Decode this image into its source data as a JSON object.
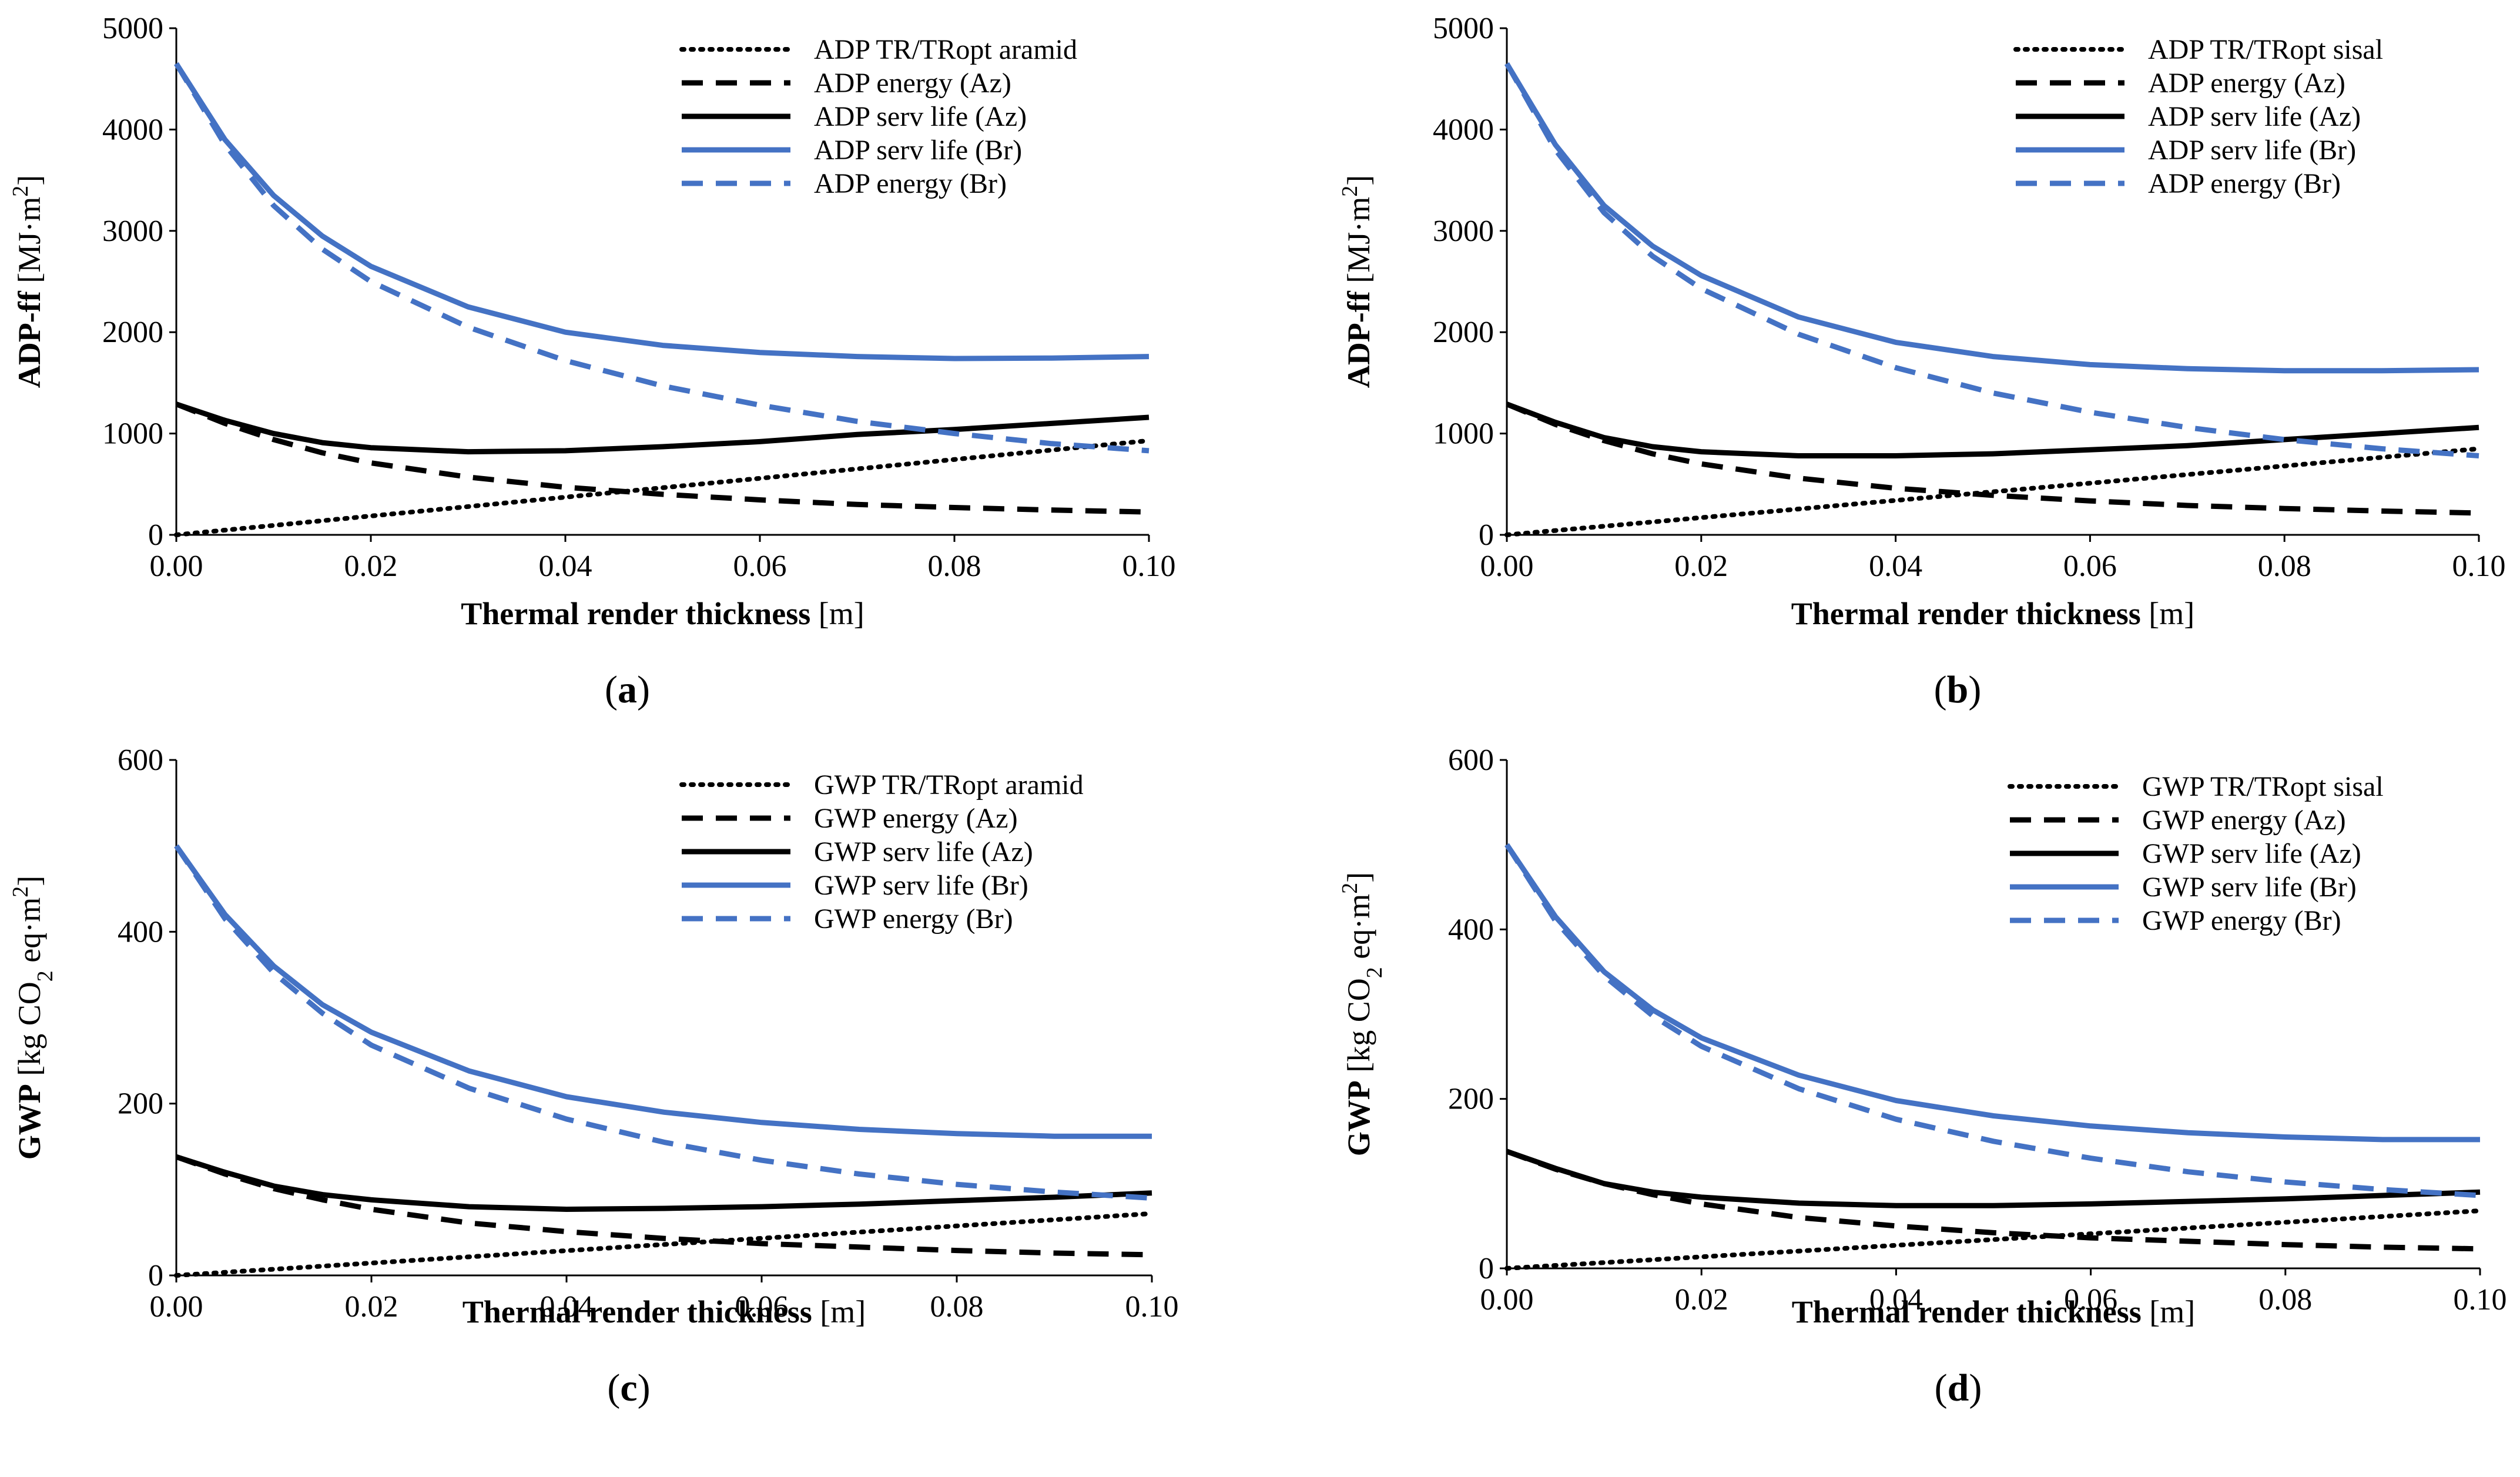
{
  "chart_data": [
    {
      "panel": "a",
      "panel_label_open": "(",
      "panel_label_letter": "a",
      "panel_label_close": ")",
      "type": "line",
      "xlabel_bold": "Thermal render thickness",
      "xlabel_unit": " [m]",
      "ylabel_bold": "ADP-ff",
      "ylabel_unit_pre": " [MJ·m",
      "ylabel_sub": "",
      "ylabel_unit_mid": "",
      "ylabel_sup": "2",
      "ylabel_unit_post": "]",
      "xlim": [
        0,
        0.1
      ],
      "ylim": [
        0,
        5000
      ],
      "x_ticks": [
        "0.00",
        "0.02",
        "0.04",
        "0.06",
        "0.08",
        "0.10"
      ],
      "y_ticks": [
        "0",
        "1000",
        "2000",
        "3000",
        "4000",
        "5000"
      ],
      "legend_position": "top-right",
      "series": [
        {
          "name": "ADP TR/TRopt aramid",
          "color": "#000000",
          "style": "dotted",
          "x": [
            0,
            0.1
          ],
          "y": [
            0,
            930
          ]
        },
        {
          "name": "ADP energy (Az)",
          "color": "#000000",
          "style": "dashed",
          "x": [
            0,
            0.005,
            0.01,
            0.015,
            0.02,
            0.03,
            0.04,
            0.05,
            0.06,
            0.07,
            0.08,
            0.09,
            0.1
          ],
          "y": [
            1290,
            1100,
            940,
            810,
            710,
            570,
            470,
            400,
            345,
            300,
            270,
            245,
            225
          ]
        },
        {
          "name": "ADP serv life (Az)",
          "color": "#000000",
          "style": "solid",
          "x": [
            0,
            0.005,
            0.01,
            0.015,
            0.02,
            0.03,
            0.04,
            0.05,
            0.06,
            0.07,
            0.08,
            0.09,
            0.1
          ],
          "y": [
            1290,
            1130,
            1000,
            910,
            860,
            820,
            830,
            870,
            920,
            990,
            1040,
            1100,
            1160
          ]
        },
        {
          "name": "ADP serv life (Br)",
          "color": "#4472C4",
          "style": "solid",
          "x": [
            0,
            0.005,
            0.01,
            0.015,
            0.02,
            0.03,
            0.04,
            0.05,
            0.06,
            0.07,
            0.08,
            0.09,
            0.1
          ],
          "y": [
            4650,
            3900,
            3350,
            2950,
            2650,
            2250,
            2000,
            1870,
            1800,
            1760,
            1740,
            1745,
            1760
          ]
        },
        {
          "name": "ADP energy (Br)",
          "color": "#4472C4",
          "style": "dashed",
          "x": [
            0,
            0.005,
            0.01,
            0.015,
            0.02,
            0.03,
            0.04,
            0.05,
            0.06,
            0.07,
            0.08,
            0.09,
            0.1
          ],
          "y": [
            4650,
            3850,
            3250,
            2820,
            2500,
            2050,
            1720,
            1470,
            1280,
            1120,
            1000,
            900,
            830
          ]
        }
      ]
    },
    {
      "panel": "b",
      "panel_label_open": "(",
      "panel_label_letter": "b",
      "panel_label_close": ")",
      "type": "line",
      "xlabel_bold": "Thermal render thickness",
      "xlabel_unit": " [m]",
      "ylabel_bold": "ADP-ff",
      "ylabel_unit_pre": " [MJ·m",
      "ylabel_sub": "",
      "ylabel_unit_mid": "",
      "ylabel_sup": "2",
      "ylabel_unit_post": "]",
      "xlim": [
        0,
        0.1
      ],
      "ylim": [
        0,
        5000
      ],
      "x_ticks": [
        "0.00",
        "0.02",
        "0.04",
        "0.06",
        "0.08",
        "0.10"
      ],
      "y_ticks": [
        "0",
        "1000",
        "2000",
        "3000",
        "4000",
        "5000"
      ],
      "legend_position": "top-right",
      "series": [
        {
          "name": "ADP TR/TRopt sisal",
          "color": "#000000",
          "style": "dotted",
          "x": [
            0,
            0.1
          ],
          "y": [
            0,
            850
          ]
        },
        {
          "name": "ADP energy (Az)",
          "color": "#000000",
          "style": "dashed",
          "x": [
            0,
            0.005,
            0.01,
            0.015,
            0.02,
            0.03,
            0.04,
            0.05,
            0.06,
            0.07,
            0.08,
            0.09,
            0.1
          ],
          "y": [
            1290,
            1090,
            930,
            800,
            700,
            560,
            460,
            390,
            335,
            290,
            260,
            235,
            215
          ]
        },
        {
          "name": "ADP serv life (Az)",
          "color": "#000000",
          "style": "solid",
          "x": [
            0,
            0.005,
            0.01,
            0.015,
            0.02,
            0.03,
            0.04,
            0.05,
            0.06,
            0.07,
            0.08,
            0.09,
            0.1
          ],
          "y": [
            1290,
            1110,
            960,
            870,
            820,
            780,
            780,
            800,
            840,
            880,
            940,
            1000,
            1060
          ]
        },
        {
          "name": "ADP serv life (Br)",
          "color": "#4472C4",
          "style": "solid",
          "x": [
            0,
            0.005,
            0.01,
            0.015,
            0.02,
            0.03,
            0.04,
            0.05,
            0.06,
            0.07,
            0.08,
            0.09,
            0.1
          ],
          "y": [
            4650,
            3850,
            3250,
            2850,
            2560,
            2150,
            1900,
            1760,
            1680,
            1640,
            1620,
            1620,
            1630
          ]
        },
        {
          "name": "ADP energy (Br)",
          "color": "#4472C4",
          "style": "dashed",
          "x": [
            0,
            0.005,
            0.01,
            0.015,
            0.02,
            0.03,
            0.04,
            0.05,
            0.06,
            0.07,
            0.08,
            0.09,
            0.1
          ],
          "y": [
            4650,
            3800,
            3180,
            2750,
            2430,
            1980,
            1650,
            1400,
            1210,
            1060,
            940,
            850,
            780
          ]
        }
      ]
    },
    {
      "panel": "c",
      "panel_label_open": "(",
      "panel_label_letter": "c",
      "panel_label_close": ")",
      "type": "line",
      "xlabel_bold": "Thermal render thickness",
      "xlabel_unit": " [m]",
      "ylabel_bold": "GWP",
      "ylabel_unit_pre": " [kg CO",
      "ylabel_sub": "2",
      "ylabel_unit_mid": " eq·m",
      "ylabel_sup": "2",
      "ylabel_unit_post": "]",
      "xlim": [
        0,
        0.1
      ],
      "ylim": [
        0,
        600
      ],
      "x_ticks": [
        "0.00",
        "0.02",
        "0.04",
        "0.06",
        "0.08",
        "0.10"
      ],
      "y_ticks": [
        "0",
        "200",
        "400",
        "600"
      ],
      "legend_position": "top-right",
      "series": [
        {
          "name": "GWP TR/TRopt aramid",
          "color": "#000000",
          "style": "dotted",
          "x": [
            0,
            0.1
          ],
          "y": [
            0,
            72
          ]
        },
        {
          "name": "GWP energy (Az)",
          "color": "#000000",
          "style": "dashed",
          "x": [
            0,
            0.005,
            0.01,
            0.015,
            0.02,
            0.03,
            0.04,
            0.05,
            0.06,
            0.07,
            0.08,
            0.09,
            0.1
          ],
          "y": [
            138,
            118,
            101,
            88,
            77,
            61,
            51,
            43,
            37,
            33,
            29,
            26,
            24
          ]
        },
        {
          "name": "GWP serv life (Az)",
          "color": "#000000",
          "style": "solid",
          "x": [
            0,
            0.005,
            0.01,
            0.015,
            0.02,
            0.03,
            0.04,
            0.05,
            0.06,
            0.07,
            0.08,
            0.09,
            0.1
          ],
          "y": [
            138,
            120,
            104,
            94,
            88,
            80,
            77,
            78,
            80,
            83,
            87,
            91,
            96
          ]
        },
        {
          "name": "GWP serv life (Br)",
          "color": "#4472C4",
          "style": "solid",
          "x": [
            0,
            0.005,
            0.01,
            0.015,
            0.02,
            0.03,
            0.04,
            0.05,
            0.06,
            0.07,
            0.08,
            0.09,
            0.1
          ],
          "y": [
            500,
            420,
            360,
            315,
            283,
            238,
            208,
            190,
            178,
            170,
            165,
            162,
            162
          ]
        },
        {
          "name": "GWP energy (Br)",
          "color": "#4472C4",
          "style": "dashed",
          "x": [
            0,
            0.005,
            0.01,
            0.015,
            0.02,
            0.03,
            0.04,
            0.05,
            0.06,
            0.07,
            0.08,
            0.09,
            0.1
          ],
          "y": [
            500,
            415,
            352,
            305,
            268,
            218,
            182,
            155,
            134,
            118,
            106,
            97,
            90
          ]
        }
      ]
    },
    {
      "panel": "d",
      "panel_label_open": "(",
      "panel_label_letter": "d",
      "panel_label_close": ")",
      "type": "line",
      "xlabel_bold": "Thermal render thickness",
      "xlabel_unit": " [m]",
      "ylabel_bold": "GWP",
      "ylabel_unit_pre": " [kg CO",
      "ylabel_sub": "2",
      "ylabel_unit_mid": " eq·m",
      "ylabel_sup": "2",
      "ylabel_unit_post": "]",
      "xlim": [
        0,
        0.1
      ],
      "ylim": [
        0,
        600
      ],
      "x_ticks": [
        "0.00",
        "0.02",
        "0.04",
        "0.06",
        "0.08",
        "0.10"
      ],
      "y_ticks": [
        "0",
        "200",
        "400",
        "600"
      ],
      "legend_position": "top-right",
      "series": [
        {
          "name": "GWP TR/TRopt sisal",
          "color": "#000000",
          "style": "dotted",
          "x": [
            0,
            0.1
          ],
          "y": [
            0,
            68
          ]
        },
        {
          "name": "GWP energy (Az)",
          "color": "#000000",
          "style": "dashed",
          "x": [
            0,
            0.005,
            0.01,
            0.015,
            0.02,
            0.03,
            0.04,
            0.05,
            0.06,
            0.07,
            0.08,
            0.09,
            0.1
          ],
          "y": [
            138,
            117,
            100,
            87,
            76,
            60,
            50,
            42,
            36,
            32,
            28,
            25,
            23
          ]
        },
        {
          "name": "GWP serv life (Az)",
          "color": "#000000",
          "style": "solid",
          "x": [
            0,
            0.005,
            0.01,
            0.015,
            0.02,
            0.03,
            0.04,
            0.05,
            0.06,
            0.07,
            0.08,
            0.09,
            0.1
          ],
          "y": [
            138,
            118,
            100,
            90,
            84,
            77,
            74,
            74,
            76,
            79,
            82,
            86,
            90
          ]
        },
        {
          "name": "GWP serv life (Br)",
          "color": "#4472C4",
          "style": "solid",
          "x": [
            0,
            0.005,
            0.01,
            0.015,
            0.02,
            0.03,
            0.04,
            0.05,
            0.06,
            0.07,
            0.08,
            0.09,
            0.1
          ],
          "y": [
            500,
            415,
            350,
            305,
            272,
            228,
            198,
            180,
            168,
            160,
            155,
            152,
            152
          ]
        },
        {
          "name": "GWP energy (Br)",
          "color": "#4472C4",
          "style": "dashed",
          "x": [
            0,
            0.005,
            0.01,
            0.015,
            0.02,
            0.03,
            0.04,
            0.05,
            0.06,
            0.07,
            0.08,
            0.09,
            0.1
          ],
          "y": [
            500,
            410,
            345,
            298,
            262,
            212,
            176,
            150,
            130,
            114,
            102,
            93,
            86
          ]
        }
      ]
    }
  ]
}
